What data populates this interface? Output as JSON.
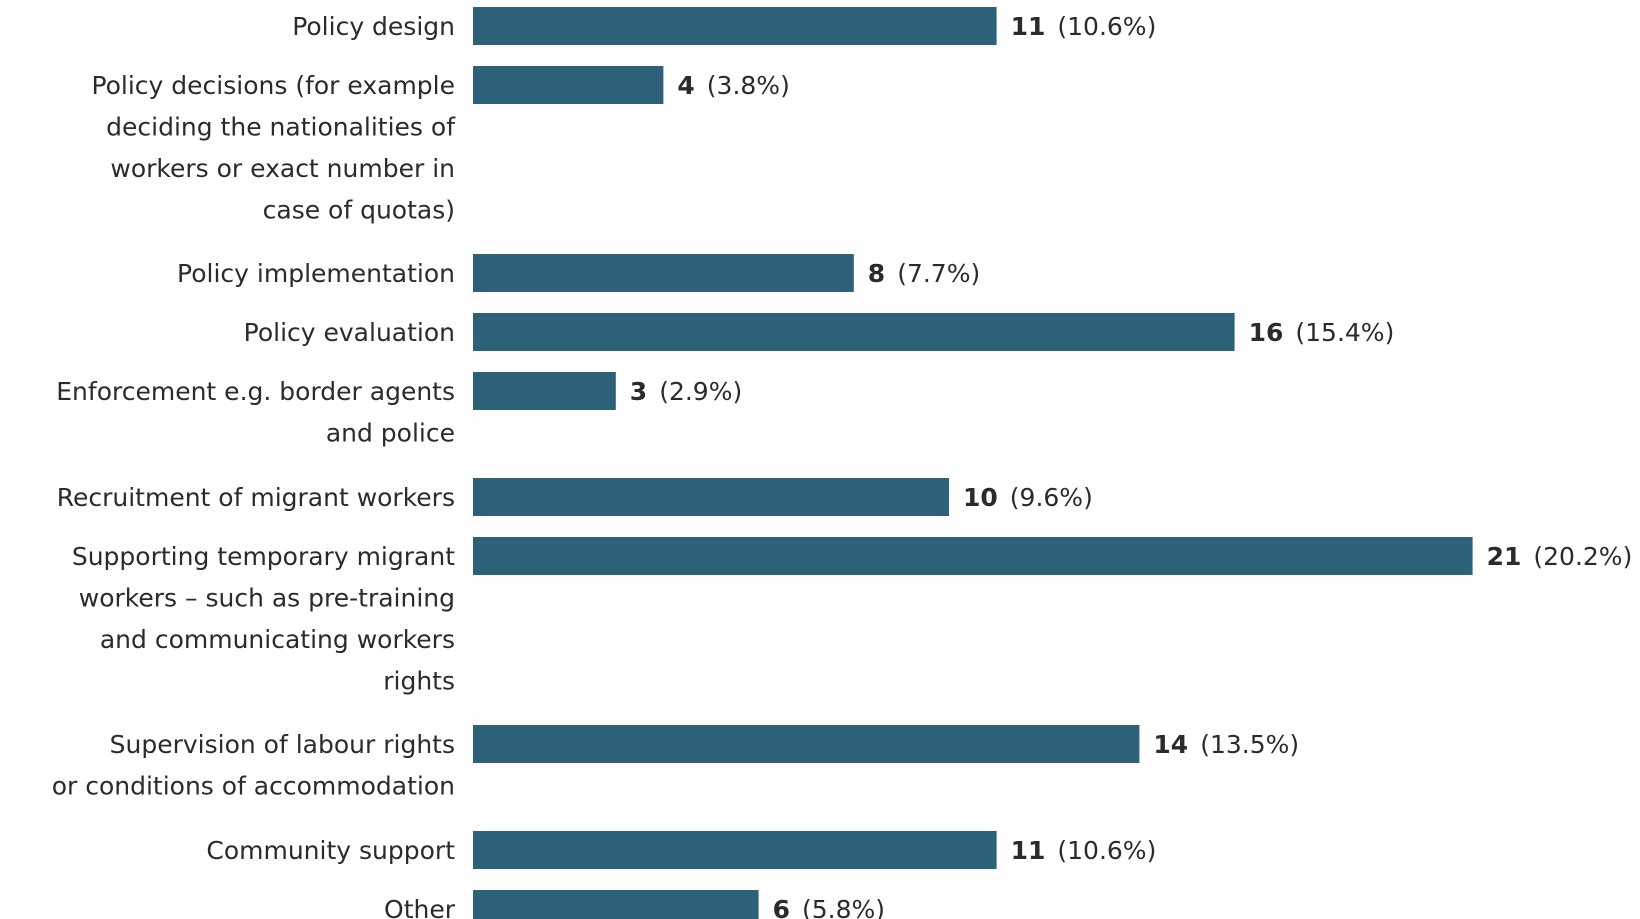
{
  "chart_data": {
    "type": "bar",
    "orientation": "horizontal",
    "title": "",
    "xlabel": "",
    "ylabel": "",
    "grid": false,
    "bar_color": "#2d6079",
    "xlim": [
      0,
      21
    ],
    "categories": [
      "Policy design",
      "Policy decisions (for example deciding the nationalities of workers or exact number in case of quotas)",
      "Policy implementation",
      "Policy evaluation",
      "Enforcement e.g. border agents and police",
      "Recruitment of migrant workers",
      "Supporting temporary migrant workers – such as pre-training and communicating workers rights",
      "Supervision of labour rights or conditions of accommodation",
      "Community support",
      "Other"
    ],
    "category_label_lines": [
      [
        "Policy design"
      ],
      [
        "Policy decisions (for example",
        "deciding the nationalities of",
        "workers or exact number in",
        "case of quotas)"
      ],
      [
        "Policy implementation"
      ],
      [
        "Policy evaluation"
      ],
      [
        "Enforcement e.g. border agents",
        "and police"
      ],
      [
        "Recruitment of migrant workers"
      ],
      [
        "Supporting temporary migrant",
        "workers – such as pre-training",
        "and communicating workers",
        "rights"
      ],
      [
        "Supervision of labour rights",
        "or conditions of accommodation"
      ],
      [
        "Community support"
      ],
      [
        "Other"
      ]
    ],
    "values": [
      11,
      4,
      8,
      16,
      3,
      10,
      21,
      14,
      11,
      6
    ],
    "percent_labels": [
      "(10.6%)",
      "(3.8%)",
      "(7.7%)",
      "(15.4%)",
      "(2.9%)",
      "(9.6%)",
      "(20.2%)",
      "(13.5%)",
      "(10.6%)",
      "(5.8%)"
    ]
  }
}
